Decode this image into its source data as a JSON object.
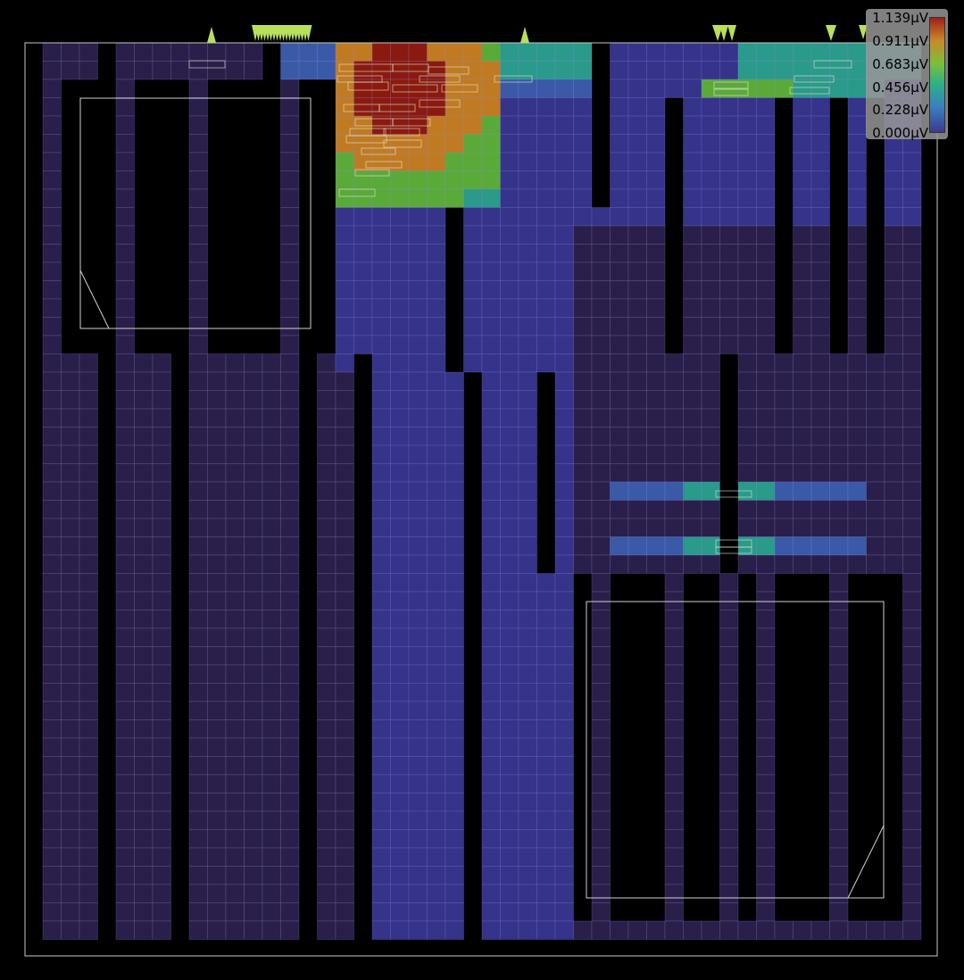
{
  "viewer": {
    "background": "#000000",
    "outline_color": "#c8c8c8"
  },
  "legend": {
    "labels": [
      "1.139µV",
      "0.911µV",
      "0.683µV",
      "0.456µV",
      "0.228µV",
      "0.000µV"
    ],
    "colors": [
      "#a0201a",
      "#c88a2a",
      "#7cbf3a",
      "#2bb08a",
      "#3a7fbf",
      "#3b3b8c"
    ]
  },
  "palette": {
    "dark_purple": "#2a1f4a",
    "blue": "#35338a",
    "mid_blue": "#3a5aa8",
    "teal": "#2a9a8a",
    "green": "#5aaa3a",
    "orange": "#c07a22",
    "red": "#8a1a10",
    "pin": "#b8e05a",
    "macro_outline": "#d0d0d0"
  }
}
